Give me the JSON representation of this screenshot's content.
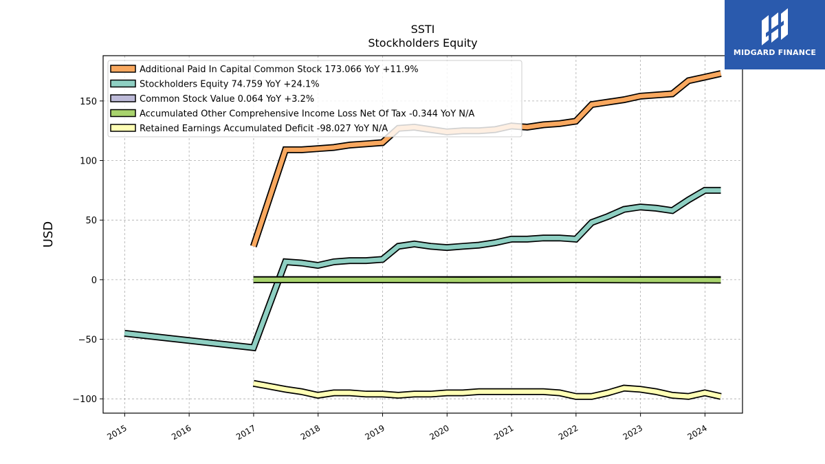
{
  "logo": {
    "text": "MIDGARD FINANCE"
  },
  "chart_data": {
    "type": "line",
    "title": "SSTI",
    "subtitle": "Stockholders  Equity",
    "ylabel": "USD",
    "xlabel": "",
    "xlim": [
      "2014-09",
      "2024-08"
    ],
    "ylim": [
      -112,
      188
    ],
    "yticks": [
      150,
      100,
      50,
      0,
      -50,
      -100
    ],
    "xticks": [
      "2015",
      "2016",
      "2017",
      "2018",
      "2019",
      "2020",
      "2021",
      "2022",
      "2023",
      "2024"
    ],
    "grid": true,
    "legend_position": "top-left",
    "series": [
      {
        "name": "Additional Paid In Capital Common Stock  173.066 YoY +11.9%",
        "color": "#f9a85f",
        "points": [
          [
            "2016-12-31",
            28
          ],
          [
            "2017-06-30",
            109
          ],
          [
            "2017-09-30",
            109
          ],
          [
            "2017-12-31",
            110
          ],
          [
            "2018-03-31",
            111
          ],
          [
            "2018-06-30",
            113
          ],
          [
            "2018-09-30",
            114
          ],
          [
            "2018-12-31",
            115
          ],
          [
            "2019-03-31",
            127
          ],
          [
            "2019-06-30",
            128
          ],
          [
            "2019-09-30",
            126
          ],
          [
            "2019-12-31",
            124
          ],
          [
            "2020-03-31",
            125
          ],
          [
            "2020-06-30",
            125
          ],
          [
            "2020-09-30",
            126
          ],
          [
            "2020-12-31",
            129
          ],
          [
            "2021-03-31",
            128
          ],
          [
            "2021-06-30",
            130
          ],
          [
            "2021-09-30",
            131
          ],
          [
            "2021-12-31",
            133
          ],
          [
            "2022-03-31",
            147
          ],
          [
            "2022-06-30",
            149
          ],
          [
            "2022-09-30",
            151
          ],
          [
            "2022-12-31",
            154
          ],
          [
            "2023-03-31",
            155
          ],
          [
            "2023-06-30",
            156
          ],
          [
            "2023-09-30",
            167
          ],
          [
            "2023-12-31",
            170
          ],
          [
            "2024-03-31",
            173
          ]
        ]
      },
      {
        "name": "Stockholders Equity  74.759 YoY +24.1%",
        "color": "#8ecfc2",
        "points": [
          [
            "2014-12-31",
            -45
          ],
          [
            "2016-12-31",
            -57
          ],
          [
            "2017-06-30",
            15
          ],
          [
            "2017-09-30",
            14
          ],
          [
            "2017-12-31",
            12
          ],
          [
            "2018-03-31",
            15
          ],
          [
            "2018-06-30",
            16
          ],
          [
            "2018-09-30",
            16
          ],
          [
            "2018-12-31",
            17
          ],
          [
            "2019-03-31",
            28
          ],
          [
            "2019-06-30",
            30
          ],
          [
            "2019-09-30",
            28
          ],
          [
            "2019-12-31",
            27
          ],
          [
            "2020-03-31",
            28
          ],
          [
            "2020-06-30",
            29
          ],
          [
            "2020-09-30",
            31
          ],
          [
            "2020-12-31",
            34
          ],
          [
            "2021-03-31",
            34
          ],
          [
            "2021-06-30",
            35
          ],
          [
            "2021-09-30",
            35
          ],
          [
            "2021-12-31",
            34
          ],
          [
            "2022-03-31",
            48
          ],
          [
            "2022-06-30",
            53
          ],
          [
            "2022-09-30",
            59
          ],
          [
            "2022-12-31",
            61
          ],
          [
            "2023-03-31",
            60
          ],
          [
            "2023-06-30",
            58
          ],
          [
            "2023-09-30",
            67
          ],
          [
            "2023-12-31",
            75
          ],
          [
            "2024-03-31",
            75
          ]
        ]
      },
      {
        "name": "Common Stock Value  0.064 YoY +3.2%",
        "color": "#bdbad8",
        "points": [
          [
            "2016-12-31",
            0.06
          ],
          [
            "2024-03-31",
            0.064
          ]
        ]
      },
      {
        "name": "Accumulated Other Comprehensive Income Loss Net Of Tax  -0.344 YoY N/A",
        "color": "#a8d36d",
        "points": [
          [
            "2016-12-31",
            -0.1
          ],
          [
            "2018-12-31",
            -0.1
          ],
          [
            "2020-03-31",
            -0.2
          ],
          [
            "2021-12-31",
            -0.1
          ],
          [
            "2022-12-31",
            -0.2
          ],
          [
            "2023-12-31",
            -0.3
          ],
          [
            "2024-03-31",
            -0.344
          ]
        ]
      },
      {
        "name": "Retained Earnings Accumulated Deficit  -98.027 YoY N/A",
        "color": "#ffffb5",
        "points": [
          [
            "2016-12-31",
            -87
          ],
          [
            "2017-06-30",
            -92
          ],
          [
            "2017-09-30",
            -94
          ],
          [
            "2017-12-31",
            -97
          ],
          [
            "2018-03-31",
            -95
          ],
          [
            "2018-06-30",
            -95
          ],
          [
            "2018-09-30",
            -96
          ],
          [
            "2018-12-31",
            -96
          ],
          [
            "2019-03-31",
            -97
          ],
          [
            "2019-06-30",
            -96
          ],
          [
            "2019-09-30",
            -96
          ],
          [
            "2019-12-31",
            -95
          ],
          [
            "2020-03-31",
            -95
          ],
          [
            "2020-06-30",
            -94
          ],
          [
            "2020-09-30",
            -94
          ],
          [
            "2020-12-31",
            -94
          ],
          [
            "2021-03-31",
            -94
          ],
          [
            "2021-06-30",
            -94
          ],
          [
            "2021-09-30",
            -95
          ],
          [
            "2021-12-31",
            -98
          ],
          [
            "2022-03-31",
            -98
          ],
          [
            "2022-06-30",
            -95
          ],
          [
            "2022-09-30",
            -91
          ],
          [
            "2022-12-31",
            -92
          ],
          [
            "2023-03-31",
            -94
          ],
          [
            "2023-06-30",
            -97
          ],
          [
            "2023-09-30",
            -98
          ],
          [
            "2023-12-31",
            -95
          ],
          [
            "2024-03-31",
            -98
          ]
        ]
      }
    ]
  }
}
